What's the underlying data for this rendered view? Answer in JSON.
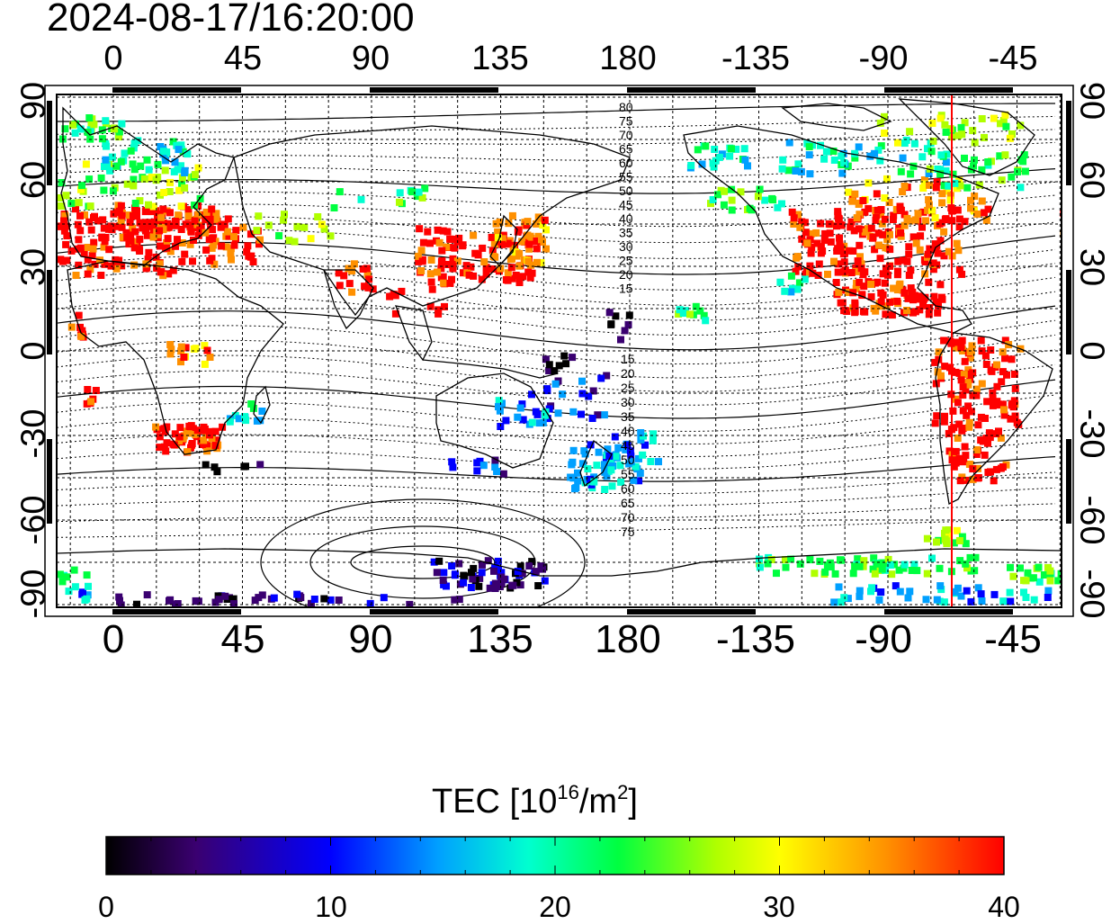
{
  "title": "2024-08-17/16:20:00",
  "map": {
    "lon_labels_top": [
      "0",
      "45",
      "90",
      "135",
      "180",
      "-135",
      "-90",
      "-45"
    ],
    "lon_labels_bottom": [
      "0",
      "45",
      "90",
      "135",
      "180",
      "-135",
      "-90",
      "-45"
    ],
    "lat_labels_left": [
      "90",
      "60",
      "30",
      "0",
      "-30",
      "-60",
      "-90"
    ],
    "lat_labels_right": [
      "90",
      "60",
      "30",
      "0",
      "-30",
      "-60",
      "-90"
    ],
    "contour_labels_north": [
      "80",
      "75",
      "70",
      "65",
      "60",
      "55",
      "50",
      "45",
      "40",
      "35",
      "30",
      "25",
      "20",
      "15"
    ],
    "contour_labels_south": [
      "15",
      "20",
      "25",
      "30",
      "35",
      "40",
      "45",
      "50",
      "55",
      "60",
      "65",
      "70",
      "75"
    ],
    "terminator_color": "#ff0000",
    "land_outline_color": "#000000"
  },
  "colorbar": {
    "title_main": "TEC  [10",
    "title_sup1": "16",
    "title_mid": "/m",
    "title_sup2": "2",
    "title_end": "]",
    "tick_labels": [
      "0",
      "10",
      "20",
      "30",
      "40"
    ],
    "min": 0,
    "max": 40,
    "colors": [
      "#000000",
      "#3a0070",
      "#0000ff",
      "#00a0ff",
      "#00ffd0",
      "#00ff40",
      "#b0ff00",
      "#ffff00",
      "#ff9000",
      "#ff0000"
    ]
  }
}
